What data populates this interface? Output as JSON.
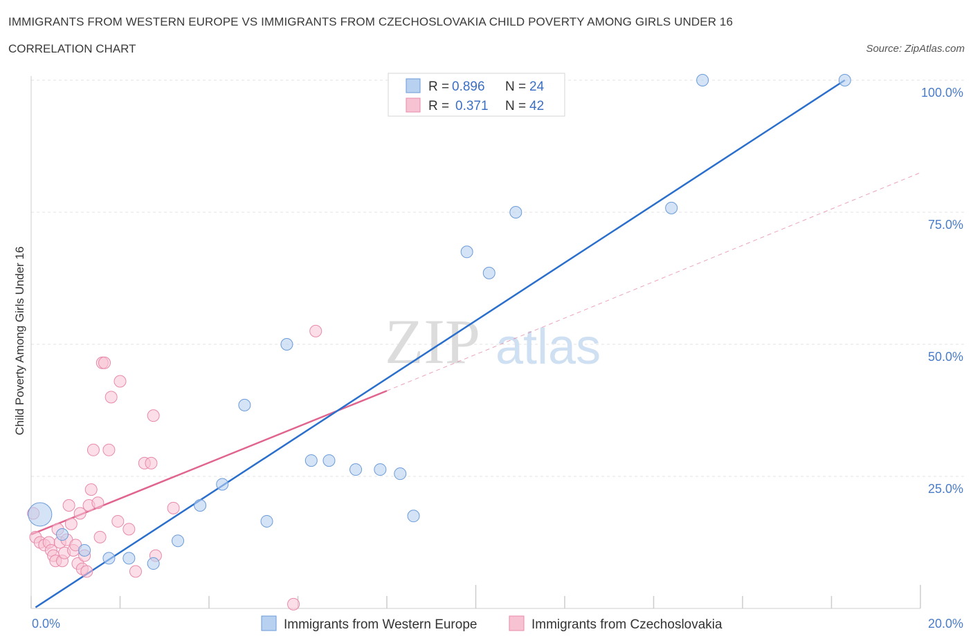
{
  "header": {
    "title": "IMMIGRANTS FROM WESTERN EUROPE VS IMMIGRANTS FROM CZECHOSLOVAKIA CHILD POVERTY AMONG GIRLS UNDER 16",
    "subtitle": "CORRELATION CHART",
    "source": "Source: ZipAtlas.com"
  },
  "watermark": {
    "zip": "ZIP",
    "atlas": "atlas"
  },
  "legend": {
    "rows": [
      {
        "r_label": "R = ",
        "r_value": "0.896",
        "n_label": "N = ",
        "n_value": "24"
      },
      {
        "r_label": "R = ",
        "r_value": "0.371",
        "n_label": "N = ",
        "n_value": "42"
      }
    ]
  },
  "colors": {
    "blue_fill": "#b8d1f0",
    "blue_stroke": "#6b9bd8",
    "blue_line": "#2a6fcc",
    "pink_fill": "#f7c3d3",
    "pink_stroke": "#e88aaa",
    "pink_line": "#e0648e",
    "grid": "#e3e3e3",
    "tick_text": "#4a7cc7"
  },
  "chart_data": {
    "type": "scatter",
    "title": "IMMIGRANTS FROM WESTERN EUROPE VS IMMIGRANTS FROM CZECHOSLOVAKIA CHILD POVERTY AMONG GIRLS UNDER 16",
    "subtitle": "CORRELATION CHART",
    "xlabel": "",
    "ylabel": "Child Poverty Among Girls Under 16",
    "xlim": [
      0,
      20
    ],
    "ylim": [
      0,
      100
    ],
    "x_tick_labels": [
      "0.0%",
      "20.0%"
    ],
    "y_tick_labels": [
      "100.0%",
      "75.0%",
      "50.0%",
      "25.0%"
    ],
    "y_ticks": [
      100,
      75,
      50,
      25
    ],
    "grid": true,
    "legend_position": "top-center",
    "series": [
      {
        "name": "Immigrants from Western Europe",
        "color": "#b8d1f0",
        "r": 0.896,
        "n": 24,
        "trend": {
          "x": [
            0.1,
            18.3
          ],
          "y": [
            0.2,
            100.0
          ]
        },
        "points": [
          {
            "x": 0.2,
            "y": 17.8,
            "big": true
          },
          {
            "x": 0.7,
            "y": 14.0
          },
          {
            "x": 1.2,
            "y": 11.0
          },
          {
            "x": 1.75,
            "y": 9.5
          },
          {
            "x": 2.2,
            "y": 9.5
          },
          {
            "x": 2.75,
            "y": 8.5
          },
          {
            "x": 3.3,
            "y": 12.8
          },
          {
            "x": 3.8,
            "y": 19.5
          },
          {
            "x": 4.3,
            "y": 23.5
          },
          {
            "x": 4.8,
            "y": 38.5
          },
          {
            "x": 5.3,
            "y": 16.5
          },
          {
            "x": 5.75,
            "y": 50.0
          },
          {
            "x": 6.3,
            "y": 28.0
          },
          {
            "x": 6.7,
            "y": 28.0
          },
          {
            "x": 7.3,
            "y": 26.3
          },
          {
            "x": 7.85,
            "y": 26.3
          },
          {
            "x": 8.3,
            "y": 25.5
          },
          {
            "x": 8.6,
            "y": 17.5
          },
          {
            "x": 9.8,
            "y": 67.5
          },
          {
            "x": 10.3,
            "y": 63.5
          },
          {
            "x": 10.9,
            "y": 75.0
          },
          {
            "x": 14.4,
            "y": 75.8
          },
          {
            "x": 15.1,
            "y": 100.0
          },
          {
            "x": 18.3,
            "y": 100.0
          }
        ]
      },
      {
        "name": "Immigrants from Czechoslovakia",
        "color": "#f7c3d3",
        "r": 0.371,
        "n": 42,
        "trend": {
          "x": [
            0.0,
            8.0
          ],
          "y": [
            14.0,
            41.2
          ]
        },
        "trend_extended": {
          "x": [
            8.0,
            20.0
          ],
          "y": [
            41.2,
            82.5
          ]
        },
        "points": [
          {
            "x": 0.05,
            "y": 18.0
          },
          {
            "x": 0.1,
            "y": 13.5
          },
          {
            "x": 0.2,
            "y": 12.5
          },
          {
            "x": 0.3,
            "y": 12.0
          },
          {
            "x": 0.4,
            "y": 12.5
          },
          {
            "x": 0.45,
            "y": 11.0
          },
          {
            "x": 0.5,
            "y": 10.0
          },
          {
            "x": 0.55,
            "y": 9.0
          },
          {
            "x": 0.6,
            "y": 15.0
          },
          {
            "x": 0.65,
            "y": 12.5
          },
          {
            "x": 0.7,
            "y": 9.0
          },
          {
            "x": 0.75,
            "y": 10.5
          },
          {
            "x": 0.8,
            "y": 13.0
          },
          {
            "x": 0.9,
            "y": 16.0
          },
          {
            "x": 0.95,
            "y": 11.0
          },
          {
            "x": 0.85,
            "y": 19.5
          },
          {
            "x": 1.0,
            "y": 12.0
          },
          {
            "x": 1.05,
            "y": 8.5
          },
          {
            "x": 1.1,
            "y": 18.0
          },
          {
            "x": 1.15,
            "y": 7.5
          },
          {
            "x": 1.2,
            "y": 10.0
          },
          {
            "x": 1.25,
            "y": 7.0
          },
          {
            "x": 1.3,
            "y": 19.5
          },
          {
            "x": 1.35,
            "y": 22.5
          },
          {
            "x": 1.4,
            "y": 30.0
          },
          {
            "x": 1.5,
            "y": 20.0
          },
          {
            "x": 1.55,
            "y": 13.5
          },
          {
            "x": 1.6,
            "y": 46.5
          },
          {
            "x": 1.65,
            "y": 46.5
          },
          {
            "x": 1.75,
            "y": 30.0
          },
          {
            "x": 1.8,
            "y": 40.0
          },
          {
            "x": 1.95,
            "y": 16.5
          },
          {
            "x": 2.0,
            "y": 43.0
          },
          {
            "x": 2.2,
            "y": 15.0
          },
          {
            "x": 2.35,
            "y": 7.0
          },
          {
            "x": 2.55,
            "y": 27.5
          },
          {
            "x": 2.7,
            "y": 27.5
          },
          {
            "x": 2.75,
            "y": 36.5
          },
          {
            "x": 2.8,
            "y": 10.0
          },
          {
            "x": 3.2,
            "y": 19.0
          },
          {
            "x": 5.9,
            "y": 0.8
          },
          {
            "x": 6.4,
            "y": 52.5
          }
        ]
      }
    ]
  },
  "bottom_legend": {
    "items": [
      {
        "label": "Immigrants from Western Europe"
      },
      {
        "label": "Immigrants from Czechoslovakia"
      }
    ]
  }
}
